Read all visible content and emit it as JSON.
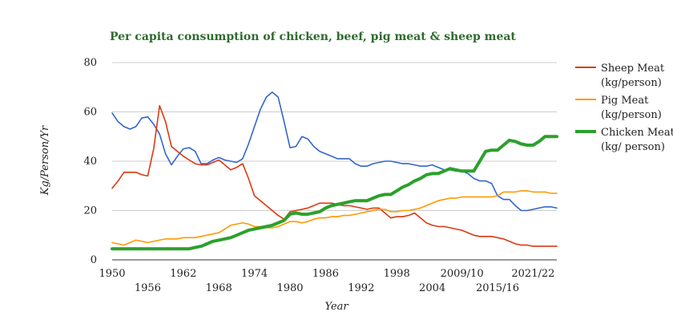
{
  "chart_data": {
    "type": "line",
    "title": "Per capita consumption of chicken, beef, pig meat & sheep meat",
    "xlabel": "Year",
    "ylabel": "Kg/Person/Yr",
    "ylim": [
      0,
      80
    ],
    "yticks": [
      "0",
      "20",
      "40",
      "60",
      "80"
    ],
    "xlim": [
      1950,
      2025
    ],
    "xticks_row1": [
      "1950",
      "1962",
      "1974",
      "1986",
      "1998",
      "2009/10",
      "2021/22"
    ],
    "xticks_row2": [
      "1956",
      "1968",
      "1980",
      "1992",
      "2004",
      "2015/16"
    ],
    "grid": "horizontal",
    "legend_position": "right",
    "series": [
      {
        "key": "beef",
        "name": "",
        "color": "#3366cc",
        "points": [
          [
            1950,
            59.5
          ],
          [
            1951,
            56
          ],
          [
            1952,
            54
          ],
          [
            1953,
            53
          ],
          [
            1954,
            54
          ],
          [
            1955,
            57.5
          ],
          [
            1956,
            58
          ],
          [
            1957,
            55
          ],
          [
            1958,
            51
          ],
          [
            1959,
            43
          ],
          [
            1960,
            38.5
          ],
          [
            1961,
            42
          ],
          [
            1962,
            45
          ],
          [
            1963,
            45.5
          ],
          [
            1964,
            44
          ],
          [
            1965,
            39
          ],
          [
            1966,
            39
          ],
          [
            1967,
            40.5
          ],
          [
            1968,
            41.5
          ],
          [
            1969,
            40.5
          ],
          [
            1970,
            40
          ],
          [
            1971,
            39.5
          ],
          [
            1972,
            41
          ],
          [
            1973,
            47
          ],
          [
            1974,
            54
          ],
          [
            1975,
            61
          ],
          [
            1976,
            66
          ],
          [
            1977,
            68
          ],
          [
            1978,
            66
          ],
          [
            1979,
            56
          ],
          [
            1980,
            45.5
          ],
          [
            1981,
            46
          ],
          [
            1982,
            50
          ],
          [
            1983,
            49
          ],
          [
            1984,
            46
          ],
          [
            1985,
            44
          ],
          [
            1986,
            43
          ],
          [
            1987,
            42
          ],
          [
            1988,
            41
          ],
          [
            1989,
            41
          ],
          [
            1990,
            41
          ],
          [
            1991,
            39
          ],
          [
            1992,
            38
          ],
          [
            1993,
            38
          ],
          [
            1994,
            39
          ],
          [
            1995,
            39.5
          ],
          [
            1996,
            40
          ],
          [
            1997,
            40
          ],
          [
            1998,
            39.5
          ],
          [
            1999,
            39
          ],
          [
            2000,
            39
          ],
          [
            2001,
            38.5
          ],
          [
            2002,
            38
          ],
          [
            2003,
            38
          ],
          [
            2004,
            38.5
          ],
          [
            2005,
            37.5
          ],
          [
            2006,
            36.5
          ],
          [
            2007,
            36.5
          ],
          [
            2008,
            36
          ],
          [
            2009,
            36
          ],
          [
            2010,
            35
          ],
          [
            2011,
            33
          ],
          [
            2012,
            32
          ],
          [
            2013,
            32
          ],
          [
            2014,
            31
          ],
          [
            2015,
            26
          ],
          [
            2016,
            24.5
          ],
          [
            2017,
            24.5
          ],
          [
            2018,
            22
          ],
          [
            2019,
            20
          ],
          [
            2020,
            20
          ],
          [
            2021,
            20.5
          ],
          [
            2022,
            21
          ],
          [
            2023,
            21.5
          ],
          [
            2024,
            21.5
          ],
          [
            2025,
            21
          ]
        ]
      },
      {
        "key": "sheep",
        "name": "Sheep Meat (kg/person)",
        "color": "#dc3912",
        "points": [
          [
            1950,
            29
          ],
          [
            1951,
            32
          ],
          [
            1952,
            35.5
          ],
          [
            1953,
            35.5
          ],
          [
            1954,
            35.5
          ],
          [
            1955,
            34.5
          ],
          [
            1956,
            34
          ],
          [
            1957,
            45
          ],
          [
            1958,
            62.5
          ],
          [
            1959,
            56
          ],
          [
            1960,
            46
          ],
          [
            1961,
            44
          ],
          [
            1962,
            42
          ],
          [
            1963,
            40.5
          ],
          [
            1964,
            39
          ],
          [
            1965,
            38.5
          ],
          [
            1966,
            38.5
          ],
          [
            1967,
            39.5
          ],
          [
            1968,
            40.5
          ],
          [
            1969,
            38.5
          ],
          [
            1970,
            36.5
          ],
          [
            1971,
            37.5
          ],
          [
            1972,
            39
          ],
          [
            1973,
            33
          ],
          [
            1974,
            26
          ],
          [
            1975,
            24
          ],
          [
            1976,
            22
          ],
          [
            1977,
            20
          ],
          [
            1978,
            18
          ],
          [
            1979,
            16.5
          ],
          [
            1980,
            19.5
          ],
          [
            1981,
            20
          ],
          [
            1982,
            20.5
          ],
          [
            1983,
            21
          ],
          [
            1984,
            22
          ],
          [
            1985,
            23
          ],
          [
            1986,
            23
          ],
          [
            1987,
            23
          ],
          [
            1988,
            22.5
          ],
          [
            1989,
            22
          ],
          [
            1990,
            22
          ],
          [
            1991,
            21.5
          ],
          [
            1992,
            21
          ],
          [
            1993,
            20.5
          ],
          [
            1994,
            21
          ],
          [
            1995,
            21
          ],
          [
            1996,
            19
          ],
          [
            1997,
            17
          ],
          [
            1998,
            17.5
          ],
          [
            1999,
            17.5
          ],
          [
            2000,
            18
          ],
          [
            2001,
            19
          ],
          [
            2002,
            17
          ],
          [
            2003,
            15
          ],
          [
            2004,
            14
          ],
          [
            2005,
            13.5
          ],
          [
            2006,
            13.5
          ],
          [
            2007,
            13
          ],
          [
            2008,
            12.5
          ],
          [
            2009,
            12
          ],
          [
            2010,
            11
          ],
          [
            2011,
            10
          ],
          [
            2012,
            9.5
          ],
          [
            2013,
            9.5
          ],
          [
            2014,
            9.5
          ],
          [
            2015,
            9
          ],
          [
            2016,
            8.5
          ],
          [
            2017,
            7.5
          ],
          [
            2018,
            6.5
          ],
          [
            2019,
            6
          ],
          [
            2020,
            6
          ],
          [
            2021,
            5.5
          ],
          [
            2022,
            5.5
          ],
          [
            2023,
            5.5
          ],
          [
            2024,
            5.5
          ],
          [
            2025,
            5.5
          ]
        ]
      },
      {
        "key": "pig",
        "name": "Pig Meat (kg/person)",
        "color": "#ff9900",
        "points": [
          [
            1950,
            7
          ],
          [
            1951,
            6.5
          ],
          [
            1952,
            6
          ],
          [
            1953,
            7
          ],
          [
            1954,
            8
          ],
          [
            1955,
            7.5
          ],
          [
            1956,
            7
          ],
          [
            1957,
            7.5
          ],
          [
            1958,
            8
          ],
          [
            1959,
            8.5
          ],
          [
            1960,
            8.5
          ],
          [
            1961,
            8.5
          ],
          [
            1962,
            9
          ],
          [
            1963,
            9
          ],
          [
            1964,
            9
          ],
          [
            1965,
            9.5
          ],
          [
            1966,
            10
          ],
          [
            1967,
            10.5
          ],
          [
            1968,
            11
          ],
          [
            1969,
            12.5
          ],
          [
            1970,
            14
          ],
          [
            1971,
            14.5
          ],
          [
            1972,
            15
          ],
          [
            1973,
            14.5
          ],
          [
            1974,
            13.5
          ],
          [
            1975,
            13.5
          ],
          [
            1976,
            13
          ],
          [
            1977,
            13
          ],
          [
            1978,
            13.5
          ],
          [
            1979,
            14.5
          ],
          [
            1980,
            15.5
          ],
          [
            1981,
            15.5
          ],
          [
            1982,
            15
          ],
          [
            1983,
            15.5
          ],
          [
            1984,
            16.5
          ],
          [
            1985,
            17
          ],
          [
            1986,
            17
          ],
          [
            1987,
            17.5
          ],
          [
            1988,
            17.5
          ],
          [
            1989,
            18
          ],
          [
            1990,
            18
          ],
          [
            1991,
            18.5
          ],
          [
            1992,
            19
          ],
          [
            1993,
            19.5
          ],
          [
            1994,
            20
          ],
          [
            1995,
            20.5
          ],
          [
            1996,
            20.5
          ],
          [
            1997,
            19.5
          ],
          [
            1998,
            19.5
          ],
          [
            1999,
            20
          ],
          [
            2000,
            20
          ],
          [
            2001,
            20.5
          ],
          [
            2002,
            21
          ],
          [
            2003,
            22
          ],
          [
            2004,
            23
          ],
          [
            2005,
            24
          ],
          [
            2006,
            24.5
          ],
          [
            2007,
            25
          ],
          [
            2008,
            25
          ],
          [
            2009,
            25.5
          ],
          [
            2010,
            25.5
          ],
          [
            2011,
            25.5
          ],
          [
            2012,
            25.5
          ],
          [
            2013,
            25.5
          ],
          [
            2014,
            25.5
          ],
          [
            2015,
            26
          ],
          [
            2016,
            27.5
          ],
          [
            2017,
            27.5
          ],
          [
            2018,
            27.5
          ],
          [
            2019,
            28
          ],
          [
            2020,
            28
          ],
          [
            2021,
            27.5
          ],
          [
            2022,
            27.5
          ],
          [
            2023,
            27.5
          ],
          [
            2024,
            27
          ],
          [
            2025,
            27
          ]
        ]
      },
      {
        "key": "chicken",
        "name": "Chicken Meat (kg/ person)",
        "color": "#2ca02c",
        "points": [
          [
            1950,
            4.5
          ],
          [
            1951,
            4.5
          ],
          [
            1952,
            4.5
          ],
          [
            1953,
            4.5
          ],
          [
            1954,
            4.5
          ],
          [
            1955,
            4.5
          ],
          [
            1956,
            4.5
          ],
          [
            1957,
            4.5
          ],
          [
            1958,
            4.5
          ],
          [
            1959,
            4.5
          ],
          [
            1960,
            4.5
          ],
          [
            1961,
            4.5
          ],
          [
            1962,
            4.5
          ],
          [
            1963,
            4.5
          ],
          [
            1964,
            5
          ],
          [
            1965,
            5.5
          ],
          [
            1966,
            6.5
          ],
          [
            1967,
            7.5
          ],
          [
            1968,
            8
          ],
          [
            1969,
            8.5
          ],
          [
            1970,
            9
          ],
          [
            1971,
            10
          ],
          [
            1972,
            11
          ],
          [
            1973,
            12
          ],
          [
            1974,
            12.5
          ],
          [
            1975,
            13
          ],
          [
            1976,
            13.5
          ],
          [
            1977,
            14
          ],
          [
            1978,
            15
          ],
          [
            1979,
            16
          ],
          [
            1980,
            18.5
          ],
          [
            1981,
            19
          ],
          [
            1982,
            18.5
          ],
          [
            1983,
            18.5
          ],
          [
            1984,
            19
          ],
          [
            1985,
            19.5
          ],
          [
            1986,
            21
          ],
          [
            1987,
            22
          ],
          [
            1988,
            22.5
          ],
          [
            1989,
            23
          ],
          [
            1990,
            23.5
          ],
          [
            1991,
            24
          ],
          [
            1992,
            24
          ],
          [
            1993,
            24
          ],
          [
            1994,
            25
          ],
          [
            1995,
            26
          ],
          [
            1996,
            26.5
          ],
          [
            1997,
            26.5
          ],
          [
            1998,
            28
          ],
          [
            1999,
            29.5
          ],
          [
            2000,
            30.5
          ],
          [
            2001,
            32
          ],
          [
            2002,
            33
          ],
          [
            2003,
            34.5
          ],
          [
            2004,
            35
          ],
          [
            2005,
            35
          ],
          [
            2006,
            36
          ],
          [
            2007,
            37
          ],
          [
            2008,
            36.5
          ],
          [
            2009,
            36
          ],
          [
            2010,
            36
          ],
          [
            2011,
            36
          ],
          [
            2012,
            40
          ],
          [
            2013,
            44
          ],
          [
            2014,
            44.5
          ],
          [
            2015,
            44.5
          ],
          [
            2016,
            46.5
          ],
          [
            2017,
            48.5
          ],
          [
            2018,
            48
          ],
          [
            2019,
            47
          ],
          [
            2020,
            46.5
          ],
          [
            2021,
            46.5
          ],
          [
            2022,
            48
          ],
          [
            2023,
            50
          ],
          [
            2024,
            50
          ],
          [
            2025,
            50
          ]
        ]
      }
    ]
  }
}
